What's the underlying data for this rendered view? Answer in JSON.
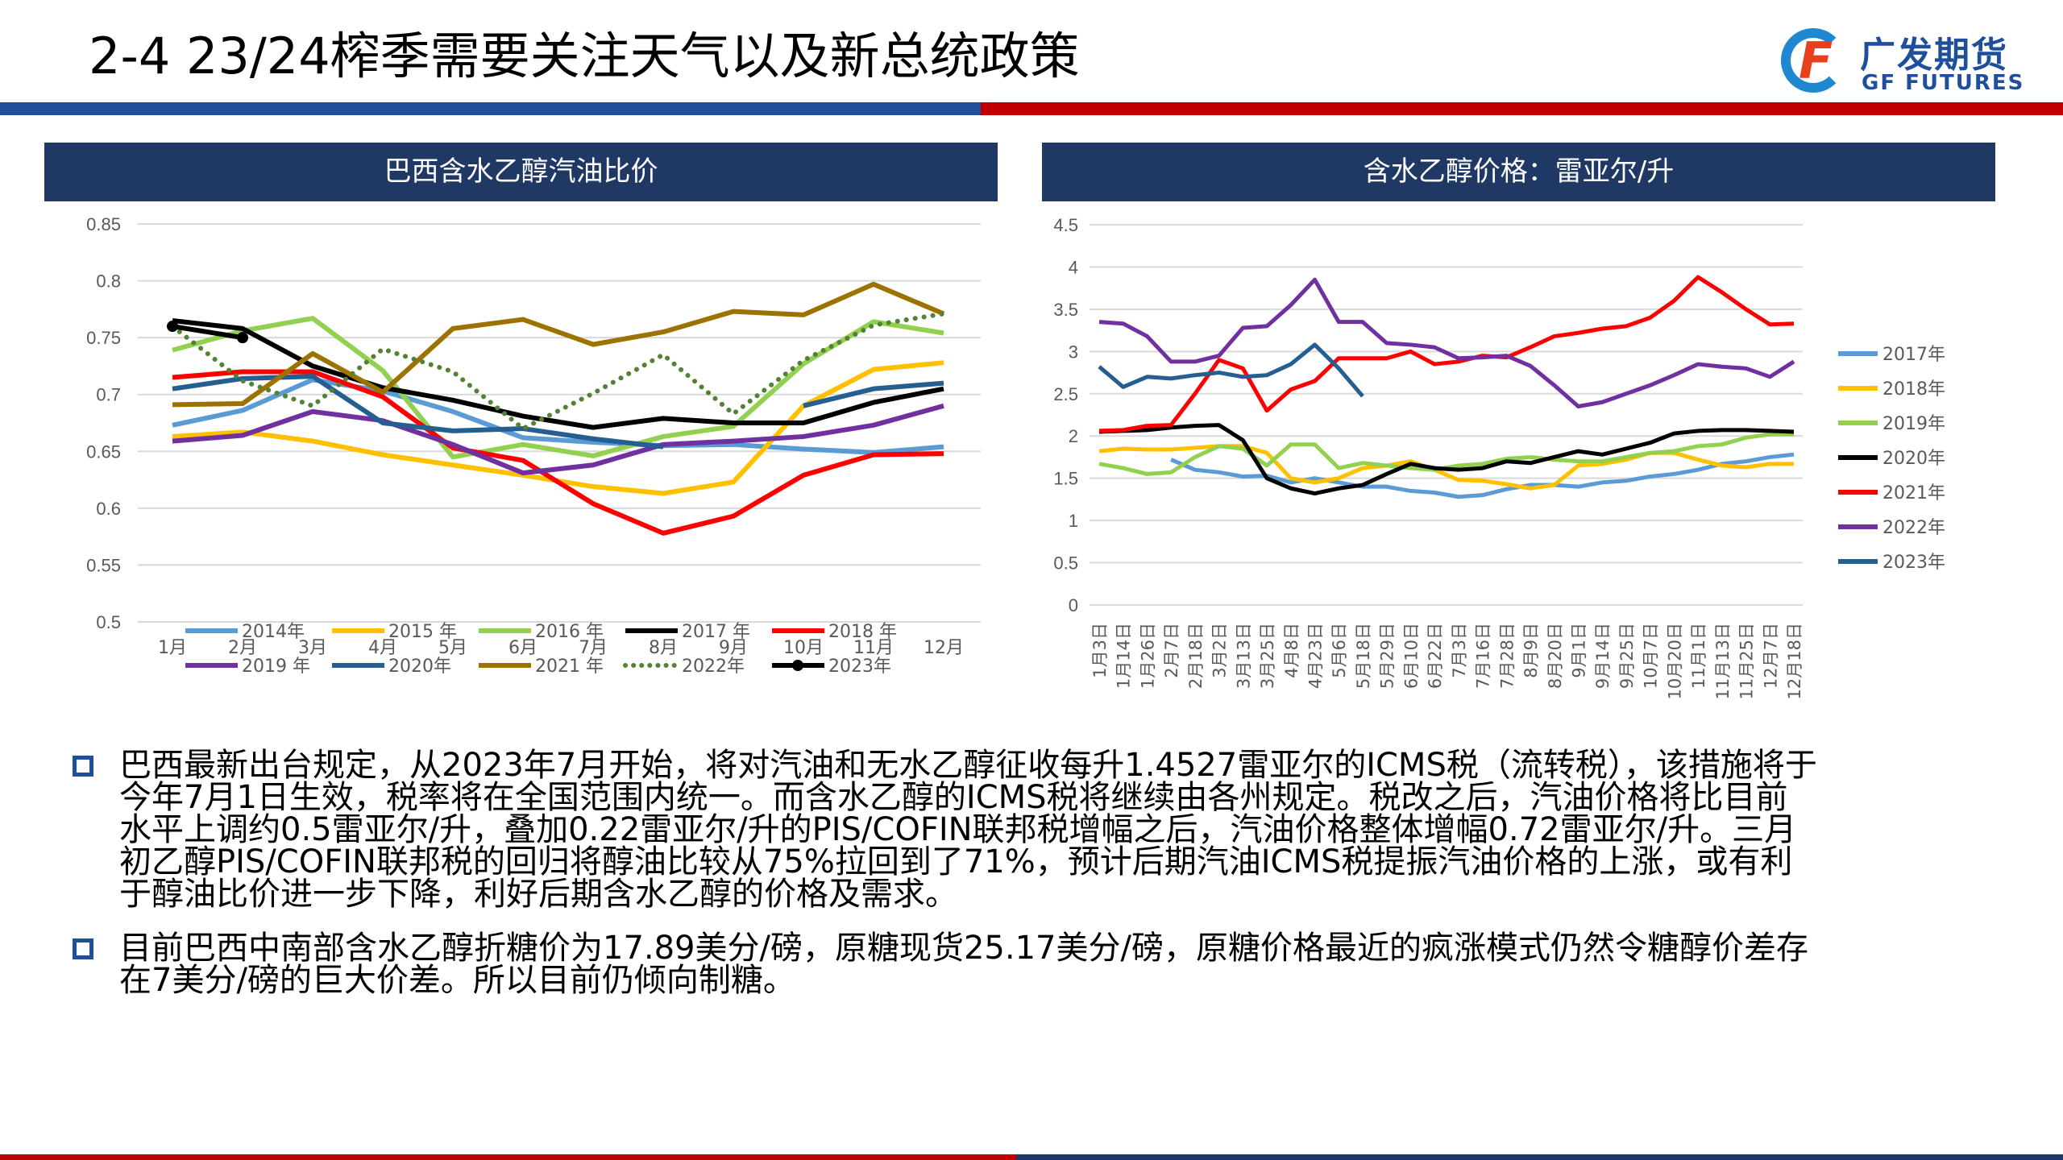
{
  "header": {
    "title": "2-4 23/24榨季需要关注天气以及新总统政策",
    "logo_cn": "广发期货",
    "logo_en": "GF FUTURES"
  },
  "colors": {
    "blue": "#1f4e9a",
    "red": "#c00000",
    "navy": "#1f3864"
  },
  "chart_data": [
    {
      "type": "line",
      "title": "巴西含水乙醇汽油比价",
      "ylim": [
        0.5,
        0.85
      ],
      "yticks": [
        0.5,
        0.55,
        0.6,
        0.65,
        0.7,
        0.75,
        0.8,
        0.85
      ],
      "categories": [
        "1月",
        "2月",
        "3月",
        "4月",
        "5月",
        "6月",
        "7月",
        "8月",
        "9月",
        "10月",
        "11月",
        "12月"
      ],
      "legend": "bottom",
      "series": [
        {
          "name": "2014年",
          "color": "#5b9bd5",
          "values": [
            0.673,
            0.686,
            0.713,
            0.703,
            0.685,
            0.662,
            0.658,
            0.655,
            0.656,
            0.652,
            0.649,
            0.654
          ]
        },
        {
          "name": "2015 年",
          "color": "#ffc000",
          "values": [
            0.663,
            0.667,
            0.659,
            0.647,
            0.638,
            0.629,
            0.619,
            0.613,
            0.623,
            0.69,
            0.722,
            0.728
          ]
        },
        {
          "name": "2016 年",
          "color": "#92d050",
          "values": [
            0.739,
            0.756,
            0.767,
            0.721,
            0.645,
            0.656,
            0.646,
            0.663,
            0.672,
            0.727,
            0.764,
            0.754
          ]
        },
        {
          "name": "2017 年",
          "color": "#000000",
          "values": [
            0.765,
            0.758,
            0.725,
            0.706,
            0.695,
            0.681,
            0.671,
            0.679,
            0.675,
            0.675,
            0.693,
            0.705
          ]
        },
        {
          "name": "2018 年",
          "color": "#ff0000",
          "values": [
            0.715,
            0.72,
            0.72,
            0.698,
            0.653,
            0.642,
            0.604,
            0.578,
            0.593,
            0.629,
            0.647,
            0.648
          ]
        },
        {
          "name": "2019 年",
          "color": "#7030a0",
          "values": [
            0.659,
            0.664,
            0.685,
            0.677,
            0.656,
            0.631,
            0.638,
            0.656,
            0.659,
            0.663,
            0.673,
            0.69
          ]
        },
        {
          "name": "2020年",
          "color": "#255e91",
          "values": [
            0.705,
            0.714,
            0.716,
            0.675,
            0.668,
            0.67,
            0.661,
            0.654,
            null,
            0.69,
            0.705,
            0.71
          ]
        },
        {
          "name": "2021 年",
          "color": "#9c7300",
          "values": [
            0.691,
            0.692,
            0.736,
            0.702,
            0.758,
            0.766,
            0.744,
            0.755,
            0.773,
            0.77,
            0.797,
            0.771
          ]
        },
        {
          "name": "2022年",
          "color": "#548235",
          "dotted": true,
          "values": [
            0.76,
            0.712,
            0.69,
            0.74,
            0.72,
            0.67,
            0.701,
            0.735,
            0.683,
            0.73,
            0.761,
            0.771
          ]
        },
        {
          "name": "2023年",
          "color": "#000000",
          "marker": true,
          "values": [
            0.76,
            0.75,
            null,
            null,
            null,
            null,
            null,
            null,
            null,
            null,
            null,
            null
          ]
        }
      ]
    },
    {
      "type": "line",
      "title": "含水乙醇价格：雷亚尔/升",
      "ylim": [
        0,
        4.5
      ],
      "yticks": [
        0,
        0.5,
        1,
        1.5,
        2,
        2.5,
        3,
        3.5,
        4,
        4.5
      ],
      "categories": [
        "1月3日",
        "1月14日",
        "1月26日",
        "2月7日",
        "2月18日",
        "3月2日",
        "3月13日",
        "3月25日",
        "4月8日",
        "4月23日",
        "5月6日",
        "5月18日",
        "5月29日",
        "6月10日",
        "6月22日",
        "7月3日",
        "7月16日",
        "7月28日",
        "8月9日",
        "8月20日",
        "9月1日",
        "9月14日",
        "9月25日",
        "10月7日",
        "10月20日",
        "11月1日",
        "11月13日",
        "11月25日",
        "12月7日",
        "12月18日"
      ],
      "legend": "right",
      "series": [
        {
          "name": "2017年",
          "color": "#5b9bd5",
          "values": [
            null,
            null,
            null,
            1.72,
            1.6,
            1.57,
            1.52,
            1.53,
            1.45,
            1.5,
            1.45,
            1.4,
            1.4,
            1.35,
            1.33,
            1.28,
            1.3,
            1.37,
            1.42,
            1.42,
            1.4,
            1.45,
            1.47,
            1.52,
            1.55,
            1.6,
            1.67,
            1.7,
            1.75,
            1.78
          ]
        },
        {
          "name": "2018年",
          "color": "#ffc000",
          "values": [
            1.82,
            1.85,
            1.84,
            1.84,
            1.86,
            1.88,
            1.88,
            1.8,
            1.5,
            1.45,
            1.5,
            1.62,
            1.65,
            1.7,
            1.6,
            1.48,
            1.47,
            1.43,
            1.38,
            1.42,
            1.65,
            1.67,
            1.72,
            1.8,
            1.8,
            1.72,
            1.65,
            1.63,
            1.67,
            1.67
          ]
        },
        {
          "name": "2019年",
          "color": "#92d050",
          "values": [
            1.67,
            1.62,
            1.55,
            1.57,
            1.75,
            1.88,
            1.85,
            1.65,
            1.9,
            1.9,
            1.62,
            1.68,
            1.65,
            1.62,
            1.6,
            1.65,
            1.67,
            1.73,
            1.75,
            1.72,
            1.7,
            1.7,
            1.75,
            1.8,
            1.82,
            1.88,
            1.9,
            1.98,
            2.02,
            2.02
          ]
        },
        {
          "name": "2020年",
          "color": "#000000",
          "values": [
            2.05,
            2.06,
            2.07,
            2.1,
            2.12,
            2.13,
            1.95,
            1.5,
            1.38,
            1.32,
            1.38,
            1.42,
            1.55,
            1.67,
            1.62,
            1.6,
            1.62,
            1.7,
            1.68,
            1.75,
            1.82,
            1.78,
            1.85,
            1.92,
            2.03,
            2.06,
            2.07,
            2.07,
            2.06,
            2.05
          ]
        },
        {
          "name": "2021年",
          "color": "#ff0000",
          "values": [
            2.06,
            2.07,
            2.12,
            2.13,
            2.5,
            2.9,
            2.8,
            2.3,
            2.55,
            2.65,
            2.92,
            2.92,
            2.92,
            3.0,
            2.85,
            2.88,
            2.95,
            2.93,
            3.05,
            3.18,
            3.22,
            3.27,
            3.3,
            3.4,
            3.6,
            3.88,
            3.7,
            3.5,
            3.32,
            3.33
          ]
        },
        {
          "name": "2022年",
          "color": "#7030a0",
          "values": [
            3.35,
            3.33,
            3.18,
            2.88,
            2.88,
            2.95,
            3.28,
            3.3,
            3.55,
            3.85,
            3.35,
            3.35,
            3.1,
            3.08,
            3.05,
            2.92,
            2.93,
            2.95,
            2.83,
            2.6,
            2.35,
            2.4,
            2.5,
            2.6,
            2.72,
            2.85,
            2.82,
            2.8,
            2.7,
            2.88
          ]
        },
        {
          "name": "2023年",
          "color": "#255e91",
          "values": [
            2.82,
            2.58,
            2.7,
            2.68,
            2.72,
            2.75,
            2.7,
            2.72,
            2.85,
            3.08,
            2.8,
            2.47,
            null,
            null,
            null,
            null,
            null,
            null,
            null,
            null,
            null,
            null,
            null,
            null,
            null,
            null,
            null,
            null,
            null,
            null
          ]
        }
      ]
    }
  ],
  "bullets": [
    {
      "lines": [
        "巴西最新出台规定，从2023年7月开始，将对汽油和无水乙醇征收每升1.4527雷亚尔的ICMS税（流转税），该措施将于",
        "今年7月1日生效，税率将在全国范围内统一。而含水乙醇的ICMS税将继续由各州规定。税改之后，汽油价格将比目前",
        "水平上调约0.5雷亚尔/升，叠加0.22雷亚尔/升的PIS/COFIN联邦税增幅之后，汽油价格整体增幅0.72雷亚尔/升。三月",
        "初乙醇PIS/COFIN联邦税的回归将醇油比较从75%拉回到了71%，预计后期汽油ICMS税提振汽油价格的上涨，或有利",
        "于醇油比价进一步下降，利好后期含水乙醇的价格及需求。"
      ]
    },
    {
      "lines": [
        "目前巴西中南部含水乙醇折糖价为17.89美分/磅，原糖现货25.17美分/磅，原糖价格最近的疯涨模式仍然令糖醇价差存",
        "在7美分/磅的巨大价差。所以目前仍倾向制糖。"
      ]
    }
  ]
}
